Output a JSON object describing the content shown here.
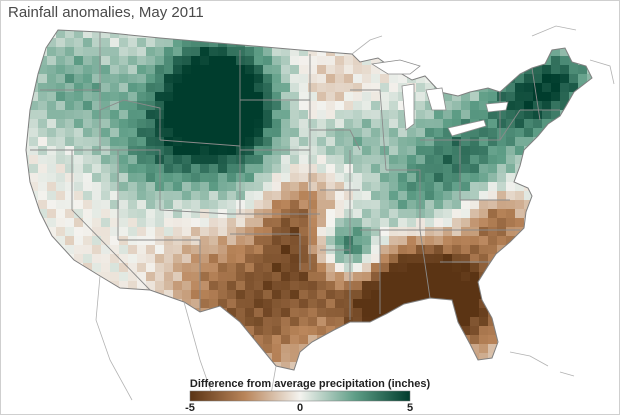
{
  "title": "Rainfall anomalies, May 2011",
  "legend": {
    "label": "Difference from average precipitation (inches)",
    "min_label": "-5",
    "mid_label": "0",
    "max_label": "5",
    "min": -5,
    "max": 5,
    "colors": {
      "dry": "#5b3414",
      "dry_mid": "#b9855a",
      "neutral": "#f4f3ef",
      "wet_mid": "#5f9e87",
      "wet": "#003d2d"
    }
  },
  "map": {
    "region": "contiguous United States",
    "state_borders": true,
    "anomaly_pattern": {
      "wet_areas": [
        "Montana",
        "Wyoming",
        "Idaho",
        "Oregon",
        "Washington",
        "Arkansas",
        "Ohio",
        "Pennsylvania",
        "New York",
        "Vermont",
        "New Hampshire",
        "Maine",
        "Tennessee",
        "Kentucky",
        "Missouri"
      ],
      "dry_areas": [
        "Texas",
        "Louisiana",
        "Mississippi",
        "Alabama",
        "Georgia",
        "Florida",
        "South Carolina",
        "Oklahoma",
        "New Mexico",
        "Kansas",
        "Virginia",
        "Maryland",
        "Delaware"
      ],
      "near_normal_areas": [
        "California",
        "Nevada",
        "Arizona",
        "Utah",
        "Dakotas",
        "Minnesota",
        "Wisconsin"
      ]
    }
  }
}
